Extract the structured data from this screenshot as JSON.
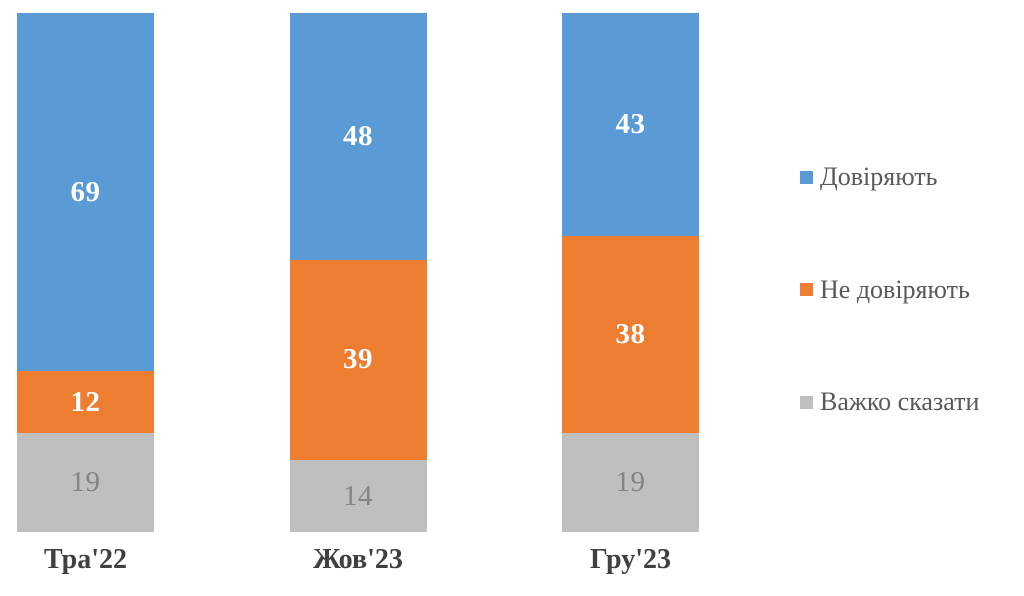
{
  "chart_data": {
    "type": "bar",
    "subtype": "stacked-100",
    "orientation": "vertical",
    "title": "",
    "xlabel": "",
    "ylabel": "",
    "grid": false,
    "legend_position": "right",
    "categories": [
      "Тра'22",
      "Жов'23",
      "Гру'23"
    ],
    "series": [
      {
        "name": "Довіряють",
        "color": "#5B9BD5",
        "values": [
          69,
          48,
          43
        ],
        "label_color": "#FFFFFF",
        "label_weight": "bold"
      },
      {
        "name": "Не довіряють",
        "color": "#ED7D31",
        "values": [
          12,
          39,
          38
        ],
        "label_color": "#FFFFFF",
        "label_weight": "bold"
      },
      {
        "name": "Важко сказати",
        "color": "#BFBFBF",
        "values": [
          19,
          14,
          19
        ],
        "label_color": "#848484",
        "label_weight": "normal"
      }
    ],
    "category_label_color": "#404040",
    "legend_text_color": "#595959"
  }
}
